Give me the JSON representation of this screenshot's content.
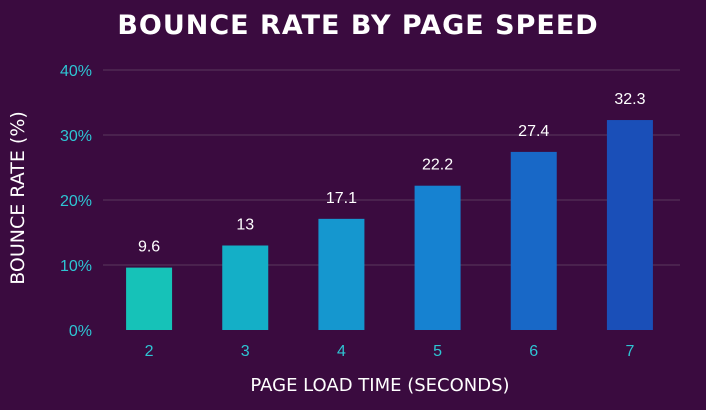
{
  "chart_data": {
    "type": "bar",
    "title": "BOUNCE RATE BY PAGE SPEED",
    "xlabel": "PAGE LOAD TIME (SECONDS)",
    "ylabel": "BOUNCE RATE (%)",
    "categories": [
      "2",
      "3",
      "4",
      "5",
      "6",
      "7"
    ],
    "values": [
      9.6,
      13,
      17.1,
      22.2,
      27.4,
      32.3
    ],
    "value_labels": [
      "9.6",
      "13",
      "17.1",
      "22.2",
      "27.4",
      "32.3"
    ],
    "ylim": [
      0,
      40
    ],
    "yticks": [
      0,
      10,
      20,
      30,
      40
    ],
    "ytick_labels": [
      "0%",
      "10%",
      "20%",
      "30%",
      "40%"
    ],
    "grid": true,
    "legend": "none"
  },
  "colors": {
    "background": "#3a0b3f",
    "title": "#ffffff",
    "tick_labels": "#2ec5d3",
    "value_labels": "#ffffff",
    "gridline": "#5a3a5e",
    "bars": [
      "#16c2b8",
      "#14afc7",
      "#1597cf",
      "#1682d1",
      "#1868c7",
      "#1a4fb8"
    ]
  }
}
